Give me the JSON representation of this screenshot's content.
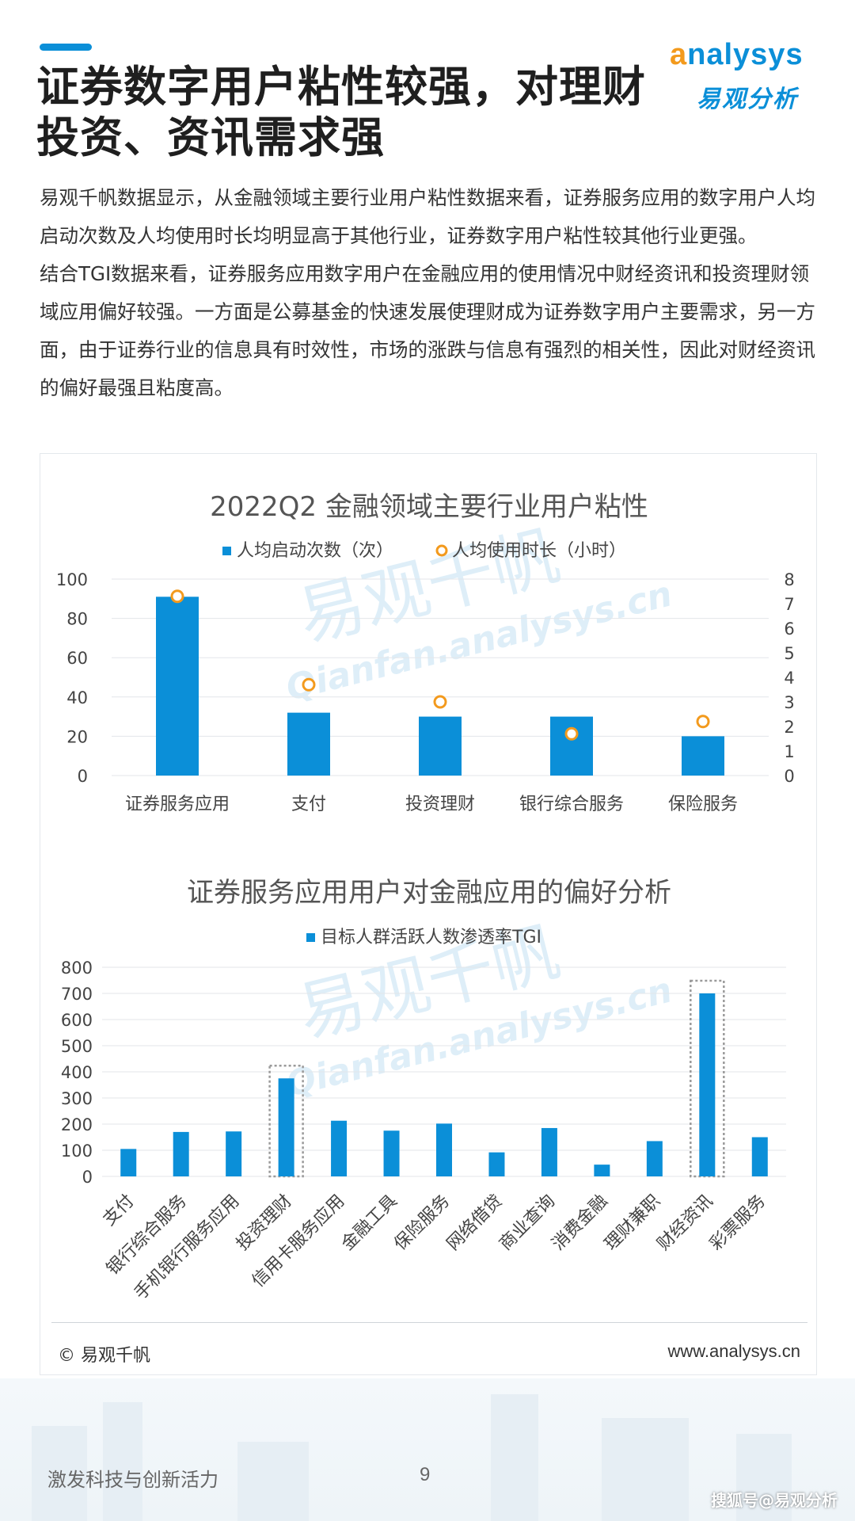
{
  "header": {
    "title_line1": "证券数字用户粘性较强，对理财",
    "title_line2": "投资、资讯需求强"
  },
  "logo": {
    "en": "nalysys",
    "en_swoosh": "a",
    "cn": "易观分析"
  },
  "body": {
    "p1": "易观千帆数据显示，从金融领域主要行业用户粘性数据来看，证券服务应用的数字用户人均启动次数及人均使用时长均明显高于其他行业，证券数字用户粘性较其他行业更强。",
    "p2": "结合TGI数据来看，证券服务应用数字用户在金融应用的使用情况中财经资讯和投资理财领域应用偏好较强。一方面是公募基金的快速发展使理财成为证券数字用户主要需求，另一方面，由于证券行业的信息具有时效性，市场的涨跌与信息有强烈的相关性，因此对财经资讯的偏好最强且粘度高。"
  },
  "watermark": {
    "cn": "易观千帆",
    "en": "Qianfan.analysys.cn"
  },
  "colors": {
    "bar": "#0b8fd8",
    "marker": "#f39a1d",
    "accent": "#0b8fd8",
    "grid": "#e3e6ea",
    "axis_text": "#444444"
  },
  "chart_data": [
    {
      "type": "bar",
      "title": "2022Q2 金融领域主要行业用户粘性",
      "categories": [
        "证券服务应用",
        "支付",
        "投资理财",
        "银行综合服务",
        "保险服务"
      ],
      "series": [
        {
          "name": "人均启动次数（次）",
          "type": "bar",
          "axis": "left",
          "values": [
            91,
            32,
            30,
            30,
            20
          ]
        },
        {
          "name": "人均使用时长（小时）",
          "type": "scatter",
          "axis": "right",
          "values": [
            7.3,
            3.7,
            3.0,
            1.7,
            2.2
          ]
        }
      ],
      "y_left": {
        "ticks": [
          0,
          20,
          40,
          60,
          80,
          100
        ],
        "lim": [
          0,
          100
        ]
      },
      "y_right": {
        "ticks": [
          0,
          1,
          2,
          3,
          4,
          5,
          6,
          7,
          8
        ],
        "lim": [
          0,
          8
        ]
      },
      "legend_position": "top-center",
      "grid": true
    },
    {
      "type": "bar",
      "title": "证券服务应用用户对金融应用的偏好分析",
      "categories": [
        "支付",
        "银行综合服务",
        "手机银行服务应用",
        "投资理财",
        "信用卡服务应用",
        "金融工具",
        "保险服务",
        "网络借贷",
        "商业查询",
        "消费金融",
        "理财兼职",
        "财经资讯",
        "彩票服务"
      ],
      "series": [
        {
          "name": "目标人群活跃人数渗透率TGI",
          "values": [
            105,
            170,
            172,
            375,
            213,
            175,
            202,
            92,
            185,
            45,
            135,
            700,
            150
          ]
        }
      ],
      "highlighted": [
        "投资理财",
        "财经资讯"
      ],
      "y_ticks": [
        0,
        100,
        200,
        300,
        400,
        500,
        600,
        700,
        800
      ],
      "ylim": [
        0,
        800
      ],
      "legend_position": "top-center",
      "grid": true
    }
  ],
  "footer": {
    "copyright": "© 易观千帆",
    "url": "www.analysys.cn",
    "slogan": "激发科技与创新活力",
    "page_number": "9",
    "sohu": "搜狐号@易观分析"
  }
}
